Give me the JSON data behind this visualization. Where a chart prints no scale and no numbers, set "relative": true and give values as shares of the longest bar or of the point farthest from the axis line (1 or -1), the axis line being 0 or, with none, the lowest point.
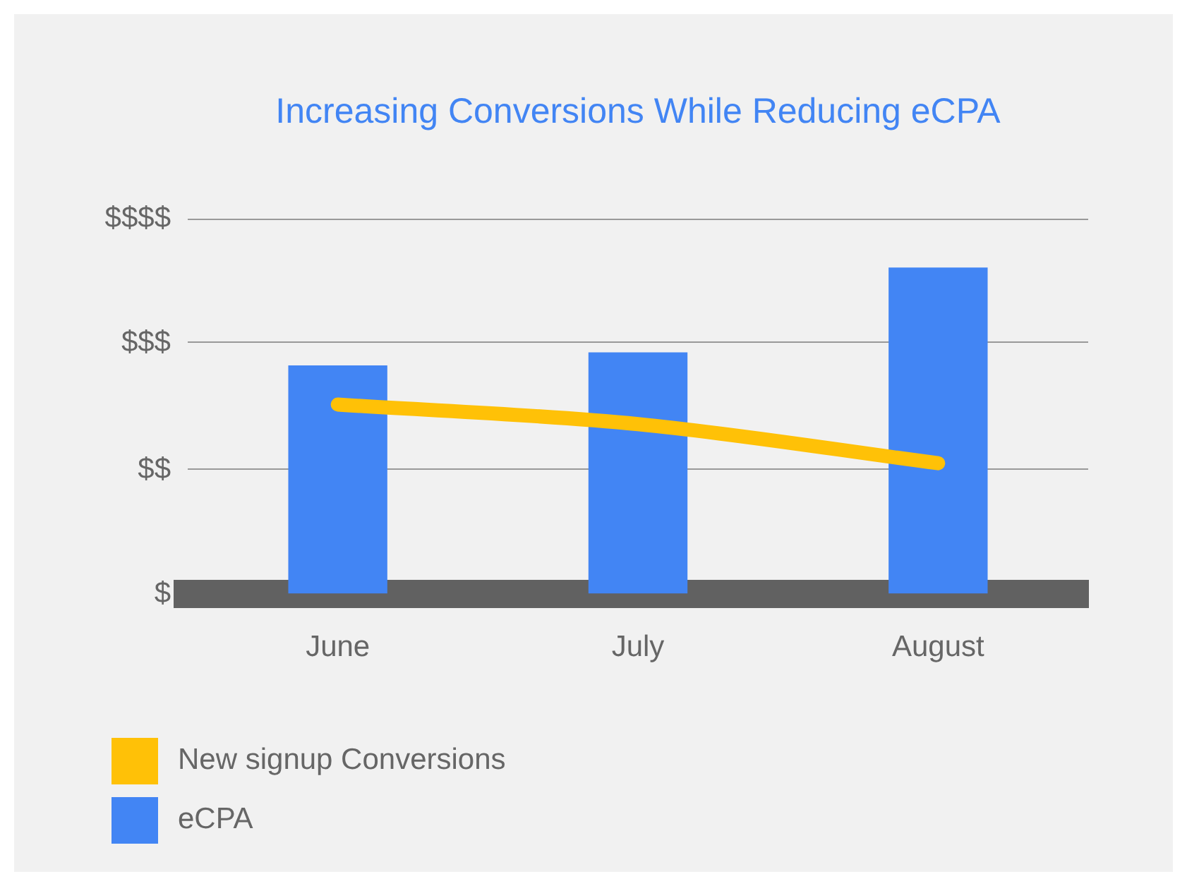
{
  "chart_data": {
    "type": "bar",
    "title": "Increasing Conversions While Reducing eCPA",
    "categories": [
      "June",
      "July",
      "August"
    ],
    "series": [
      {
        "name": "New signup Conversions",
        "type": "line",
        "color": "#ffc107",
        "values": [
          0.58,
          0.52,
          0.4
        ]
      },
      {
        "name": "eCPA",
        "color": "#4285f4",
        "values": [
          0.7,
          0.74,
          1
        ]
      }
    ],
    "relative": true,
    "annotations": [
      "$"
    ],
    "ref_lines": [
      {
        "axis": "y",
        "value": 0.38,
        "label": "$$",
        "color": "#999999"
      },
      {
        "axis": "y",
        "value": 0.77,
        "label": "$$$",
        "color": "#999999"
      },
      {
        "axis": "y",
        "value": 1.15,
        "label": "$$$$",
        "color": "#999999"
      }
    ],
    "legend": "bottom left"
  }
}
